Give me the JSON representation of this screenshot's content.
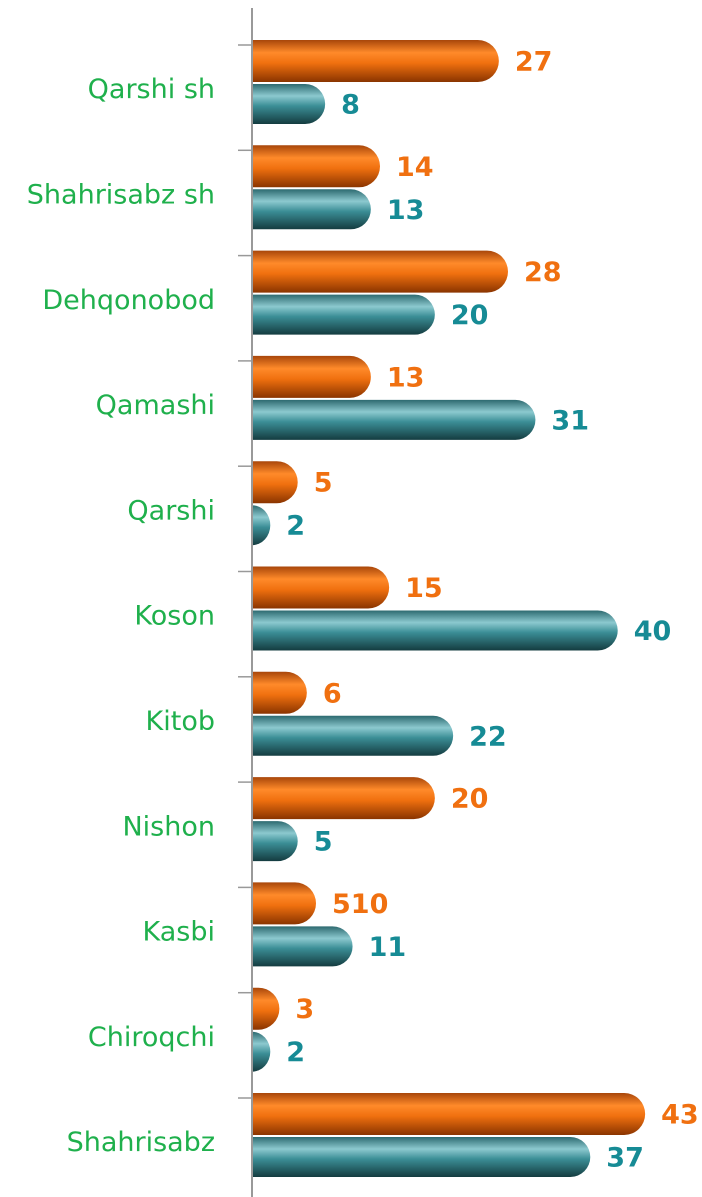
{
  "chart_data": {
    "type": "hbar",
    "categories": [
      "Qarshi sh",
      "Shahrisabz sh",
      "Dehqonobod",
      "Qamashi",
      "Qarshi",
      "Koson",
      "Kitob",
      "Nishon",
      "Kasbi",
      "Chiroqchi",
      "Shahrisabz"
    ],
    "series": [
      {
        "color": "#e8650a",
        "label_color": "#f07010",
        "values": [
          27,
          14,
          28,
          13,
          5,
          15,
          6,
          20,
          7,
          3,
          43
        ]
      },
      {
        "color": "#2b7c84",
        "label_color": "#168b95",
        "values": [
          8,
          13,
          20,
          31,
          2,
          40,
          22,
          5,
          11,
          2,
          37
        ]
      }
    ],
    "annotations": [
      {
        "text": "510",
        "category": 8,
        "series": 0
      }
    ],
    "xlim": [
      0,
      49
    ]
  }
}
